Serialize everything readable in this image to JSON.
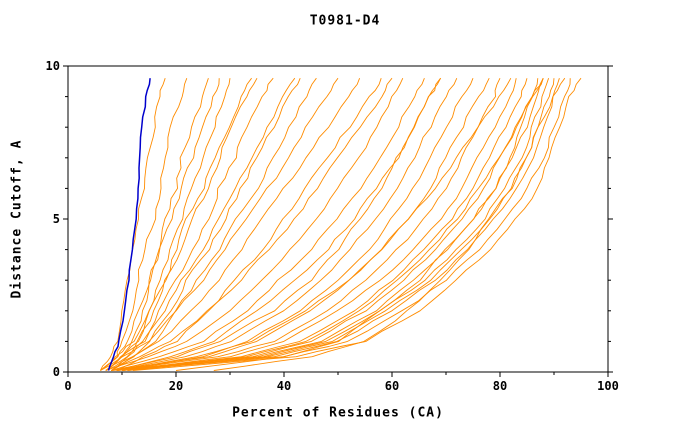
{
  "title": "T0981-D4",
  "chart_data": {
    "type": "line",
    "title": "T0981-D4",
    "xlabel": "Percent of Residues (CA)",
    "ylabel": "Distance Cutoff, A",
    "xlim": [
      0,
      100
    ],
    "ylim": [
      0,
      10
    ],
    "x_major_ticks": [
      0,
      20,
      40,
      60,
      80,
      100
    ],
    "x_minor_step": 10,
    "y_major_ticks": [
      0,
      5,
      10
    ],
    "y_minor_step": 1,
    "grid": false,
    "legend": null,
    "colors": {
      "models": "#FF8C00",
      "highlight": "#0000CC",
      "axis": "#000000",
      "background": "#FFFFFF"
    },
    "y_samples": [
      0.05,
      0.5,
      1,
      2,
      3,
      4,
      5,
      6,
      7,
      8,
      9,
      9.6
    ],
    "highlight_series": {
      "name": "highlighted-model",
      "color": "#0000CC",
      "x": [
        7.5,
        8.5,
        9.5,
        10.5,
        11.2,
        12,
        12.5,
        13,
        13.3,
        13.6,
        14.5,
        15.2
      ]
    },
    "series": [
      {
        "x": [
          6,
          8,
          9,
          10,
          11,
          12,
          13,
          14,
          15,
          16,
          17,
          18
        ]
      },
      {
        "x": [
          6,
          9,
          10,
          12,
          13,
          14,
          16,
          17,
          18,
          19,
          21,
          22
        ]
      },
      {
        "x": [
          7,
          10,
          12,
          14,
          15,
          17,
          18,
          20,
          21,
          23,
          25,
          26
        ]
      },
      {
        "x": [
          7,
          10,
          13,
          15,
          17,
          19,
          21,
          23,
          25,
          27,
          29,
          30
        ]
      },
      {
        "x": [
          6,
          9,
          12,
          15,
          18,
          20,
          22,
          25,
          27,
          30,
          32,
          34
        ]
      },
      {
        "x": [
          8,
          11,
          14,
          17,
          20,
          23,
          26,
          28,
          31,
          33,
          36,
          38
        ]
      },
      {
        "x": [
          7,
          10,
          14,
          18,
          21,
          25,
          28,
          31,
          34,
          37,
          40,
          42
        ]
      },
      {
        "x": [
          8,
          12,
          16,
          20,
          24,
          28,
          31,
          35,
          38,
          41,
          44,
          46
        ]
      },
      {
        "x": [
          6,
          10,
          15,
          20,
          25,
          29,
          33,
          37,
          41,
          44,
          48,
          50
        ]
      },
      {
        "x": [
          7,
          12,
          17,
          23,
          28,
          32,
          36,
          40,
          44,
          48,
          52,
          54
        ]
      },
      {
        "x": [
          9,
          14,
          20,
          26,
          31,
          36,
          40,
          44,
          48,
          52,
          56,
          58
        ]
      },
      {
        "x": [
          8,
          13,
          19,
          26,
          32,
          37,
          42,
          46,
          50,
          54,
          58,
          60
        ]
      },
      {
        "x": [
          8,
          20,
          28,
          38,
          45,
          50,
          54,
          58,
          61,
          64,
          67,
          69
        ]
      },
      {
        "x": [
          9,
          22,
          30,
          40,
          47,
          52,
          57,
          61,
          64,
          67,
          70,
          72
        ]
      },
      {
        "x": [
          10,
          25,
          33,
          43,
          50,
          56,
          60,
          64,
          67,
          70,
          73,
          75
        ]
      },
      {
        "x": [
          8,
          26,
          35,
          45,
          52,
          58,
          63,
          67,
          70,
          73,
          76,
          78
        ]
      },
      {
        "x": [
          9,
          28,
          38,
          48,
          55,
          61,
          66,
          70,
          73,
          76,
          79,
          80
        ]
      },
      {
        "x": [
          10,
          30,
          40,
          50,
          58,
          64,
          69,
          73,
          76,
          79,
          82,
          83
        ]
      },
      {
        "x": [
          9,
          32,
          43,
          53,
          60,
          66,
          71,
          75,
          78,
          81,
          84,
          85
        ]
      },
      {
        "x": [
          10,
          34,
          45,
          55,
          62,
          68,
          73,
          77,
          80,
          83,
          86,
          87
        ]
      },
      {
        "x": [
          8,
          35,
          47,
          57,
          64,
          70,
          75,
          79,
          82,
          85,
          87,
          88
        ]
      },
      {
        "x": [
          11,
          36,
          48,
          58,
          66,
          72,
          77,
          81,
          84,
          86,
          88,
          89
        ]
      },
      {
        "x": [
          9,
          38,
          50,
          60,
          68,
          74,
          79,
          83,
          86,
          88,
          90,
          91
        ]
      },
      {
        "x": [
          10,
          40,
          52,
          62,
          70,
          76,
          81,
          85,
          88,
          90,
          92,
          93
        ]
      },
      {
        "x": [
          12,
          42,
          55,
          65,
          72,
          78,
          83,
          87,
          89,
          91,
          93,
          95
        ]
      },
      {
        "x": [
          27,
          45,
          55,
          63,
          69,
          74,
          78,
          82,
          85,
          87,
          89,
          90
        ]
      },
      {
        "x": [
          20,
          40,
          50,
          58,
          65,
          70,
          75,
          79,
          82,
          84,
          86,
          88
        ]
      },
      {
        "x": [
          7,
          15,
          22,
          30,
          36,
          41,
          46,
          50,
          54,
          57,
          60,
          62
        ]
      },
      {
        "x": [
          8,
          17,
          25,
          33,
          39,
          45,
          50,
          54,
          58,
          61,
          64,
          66
        ]
      },
      {
        "x": [
          9,
          19,
          27,
          35,
          42,
          48,
          53,
          57,
          61,
          64,
          67,
          69
        ]
      },
      {
        "x": [
          6,
          9,
          11,
          13,
          15,
          17,
          19,
          21,
          23,
          25,
          27,
          28
        ]
      },
      {
        "x": [
          7,
          11,
          13,
          16,
          18,
          21,
          23,
          26,
          28,
          30,
          33,
          35
        ]
      },
      {
        "x": [
          8,
          12,
          15,
          19,
          22,
          26,
          29,
          32,
          35,
          38,
          41,
          43
        ]
      },
      {
        "x": [
          10,
          33,
          44,
          54,
          61,
          67,
          72,
          76,
          80,
          83,
          86,
          88
        ]
      },
      {
        "x": [
          11,
          37,
          49,
          59,
          67,
          73,
          78,
          82,
          85,
          87,
          90,
          92
        ]
      },
      {
        "x": [
          9,
          24,
          34,
          44,
          52,
          58,
          63,
          68,
          72,
          76,
          80,
          82
        ]
      }
    ]
  }
}
